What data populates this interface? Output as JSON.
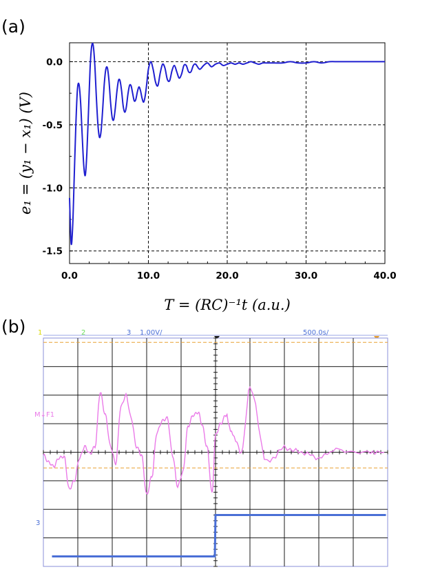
{
  "panels": {
    "a_label": "(a)",
    "b_label": "(b)"
  },
  "chart_data": [
    {
      "type": "line",
      "panel": "(a)",
      "xlabel": "T = (RC)⁻¹t    (a.u.)",
      "ylabel": "e₁ = (y₁ − x₁)    (V)",
      "xlim": [
        0,
        40
      ],
      "ylim": [
        -1.6,
        0.15
      ],
      "xticks": [
        0,
        10,
        20,
        30,
        40
      ],
      "xtick_labels": [
        "0.0",
        "10.0",
        "20.0",
        "30.0",
        "40.0"
      ],
      "yticks": [
        0,
        -0.5,
        -1.0,
        -1.5
      ],
      "ytick_labels": [
        "0.0",
        "-0.5",
        "-1.0",
        "-1.5"
      ],
      "grid": true,
      "line_color": "#1f1fd0",
      "series": [
        {
          "x": [
            0.0,
            0.2,
            0.4,
            0.6,
            0.8,
            1.0,
            1.2,
            1.4,
            1.6,
            1.8,
            2.0,
            2.2,
            2.4,
            2.6,
            2.8,
            3.0,
            3.2,
            3.4,
            3.6,
            3.8,
            4.0,
            4.2,
            4.4,
            4.6,
            4.8,
            5.0,
            5.2,
            5.4,
            5.6,
            5.8,
            6.0,
            6.2,
            6.4,
            6.6,
            6.8,
            7.0,
            7.2,
            7.4,
            7.6,
            7.8,
            8.0,
            8.2,
            8.4,
            8.6,
            8.8,
            9.0,
            9.2,
            9.4,
            9.6,
            9.8,
            10.0,
            10.3,
            10.6,
            10.9,
            11.2,
            11.5,
            11.8,
            12.1,
            12.4,
            12.7,
            13.0,
            13.3,
            13.6,
            13.9,
            14.2,
            14.5,
            14.8,
            15.1,
            15.4,
            15.7,
            16.0,
            16.5,
            17.0,
            17.5,
            18.0,
            18.5,
            19.0,
            19.5,
            20.0,
            20.5,
            21.0,
            21.5,
            22.0,
            22.5,
            23.0,
            23.5,
            24.0,
            24.5,
            25.0,
            26.0,
            27.0,
            28.0,
            29.0,
            30.0,
            31.0,
            32.0,
            33.0,
            34.0,
            35.0,
            36.0,
            37.0,
            38.0,
            39.0,
            40.0
          ],
          "y": [
            -1.08,
            -1.44,
            -1.3,
            -0.9,
            -0.5,
            -0.22,
            -0.18,
            -0.32,
            -0.58,
            -0.82,
            -0.9,
            -0.72,
            -0.4,
            -0.06,
            0.12,
            0.13,
            -0.02,
            -0.28,
            -0.5,
            -0.6,
            -0.55,
            -0.38,
            -0.18,
            -0.06,
            -0.05,
            -0.15,
            -0.32,
            -0.44,
            -0.46,
            -0.37,
            -0.24,
            -0.15,
            -0.15,
            -0.23,
            -0.35,
            -0.4,
            -0.36,
            -0.26,
            -0.19,
            -0.19,
            -0.25,
            -0.31,
            -0.3,
            -0.24,
            -0.2,
            -0.23,
            -0.29,
            -0.32,
            -0.27,
            -0.17,
            -0.06,
            0.0,
            -0.06,
            -0.16,
            -0.19,
            -0.09,
            -0.02,
            -0.05,
            -0.14,
            -0.15,
            -0.07,
            -0.03,
            -0.08,
            -0.13,
            -0.1,
            -0.03,
            -0.03,
            -0.08,
            -0.08,
            -0.03,
            -0.02,
            -0.06,
            -0.03,
            -0.01,
            -0.04,
            -0.02,
            -0.01,
            -0.03,
            -0.02,
            -0.01,
            -0.02,
            -0.01,
            -0.02,
            -0.01,
            -0.0,
            -0.01,
            -0.02,
            -0.01,
            -0.01,
            -0.01,
            -0.01,
            -0.0,
            -0.01,
            -0.01,
            -0.0,
            -0.01,
            -0.0,
            -0.0,
            -0.0,
            -0.0,
            0.0,
            -0.0,
            -0.0,
            0.0
          ]
        }
      ]
    },
    {
      "type": "line",
      "panel": "(b)",
      "header": {
        "ch1": "1",
        "ch2": "2",
        "ch3": "3",
        "scale": "1.00V/",
        "timebase": "500.0s/"
      },
      "markers": {
        "m_label": "M↓F1",
        "ch3_label": "3"
      },
      "colors": {
        "ch1": "#d8d800",
        "ch2": "#6ce05c",
        "ch3": "#4a6fd6",
        "trace_m": "#ea7ae8",
        "grid": "#1a1a1a",
        "cursor": "#e8a030"
      },
      "screen_divisions": {
        "x": 10,
        "y": 8
      },
      "series": [
        {
          "name": "M",
          "x_div": [
            0.0,
            0.15,
            0.3,
            0.45,
            0.6,
            0.75,
            0.9,
            1.05,
            1.2,
            1.35,
            1.5,
            1.65,
            1.8,
            1.95,
            2.1,
            2.25,
            2.4,
            2.55,
            2.7,
            2.85,
            3.0,
            3.15,
            3.3,
            3.45,
            3.6,
            3.75,
            3.9,
            4.05,
            4.2,
            4.35,
            4.5,
            4.6,
            4.75,
            4.9,
            5.0,
            5.15,
            5.3,
            5.5,
            5.75,
            6.0,
            6.5,
            7.0,
            7.5,
            8.0,
            8.5,
            9.0,
            9.5,
            9.9
          ],
          "y_div": [
            -0.1,
            -0.35,
            -0.5,
            -0.2,
            -0.15,
            -1.3,
            -1.0,
            -0.2,
            0.2,
            -0.05,
            0.2,
            2.1,
            1.3,
            0.2,
            -0.4,
            1.6,
            2.0,
            1.2,
            0.2,
            -0.1,
            -1.5,
            -0.85,
            0.7,
            1.1,
            1.2,
            -0.1,
            -1.2,
            -0.7,
            0.9,
            1.3,
            1.4,
            1.0,
            0.2,
            -1.45,
            0.6,
            1.0,
            1.3,
            0.6,
            0.0,
            2.25,
            -0.35,
            0.15,
            0.0,
            -0.2,
            0.1,
            0.0,
            0.0,
            0.0
          ]
        },
        {
          "name": "3",
          "x_div": [
            0.25,
            4.98,
            5.0,
            9.95
          ],
          "y_div": [
            -3.65,
            -3.65,
            -2.2,
            -2.2
          ]
        }
      ]
    }
  ]
}
